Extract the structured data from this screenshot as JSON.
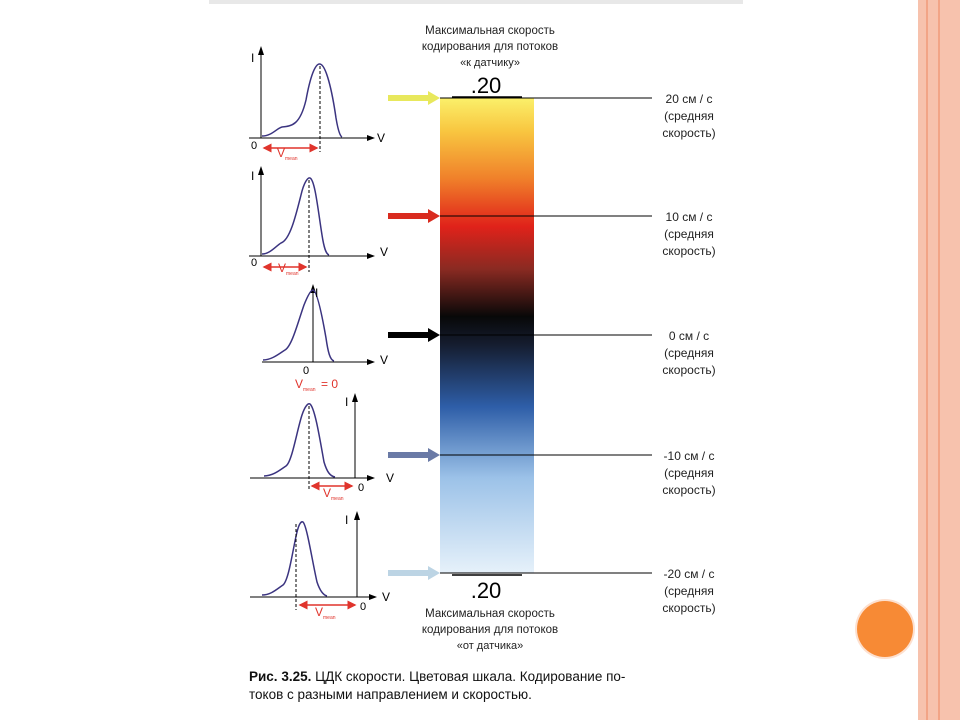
{
  "top_label": [
    "Максимальная скорость",
    "кодирования для потоков",
    "«к датчику»"
  ],
  "bottom_label": [
    "Максимальная скорость",
    "кодирования для потоков",
    "«от датчика»"
  ],
  "scale_top_value": ".20",
  "scale_bottom_value": ".20",
  "speeds": [
    {
      "value": "20 см / с",
      "note1": "(средняя",
      "note2": "скорость)",
      "arrow_color": "#e6e64a"
    },
    {
      "value": "10 см / с",
      "note1": "(средняя",
      "note2": "скорость)",
      "arrow_color": "#d92b1f"
    },
    {
      "value": "0 см / с",
      "note1": "(средняя",
      "note2": "скорость)",
      "arrow_color": "#000000"
    },
    {
      "value": "-10 см / с",
      "note1": "(средняя",
      "note2": "скорость)",
      "arrow_color": "#6a7aa6"
    },
    {
      "value": "-20 см / с",
      "note1": "(средняя",
      "note2": "скорость)",
      "arrow_color": "#bcd4e4"
    }
  ],
  "graphs": {
    "y_axis": "I",
    "x_axis": "V",
    "origin": "0",
    "v_label": "V",
    "v_sub": "mean",
    "zero_eq": "= 0"
  },
  "caption": {
    "label": "Рис. 3.25.",
    "line1": "ЦДК скорости. Цветовая шкала. Кодирование по-",
    "line2": "токов с разными направлением и скоростью."
  },
  "colors": {
    "border": "#f7c2ad",
    "dot": "#f78a35",
    "curve": "#3b3480",
    "marker": "#e0342c"
  }
}
